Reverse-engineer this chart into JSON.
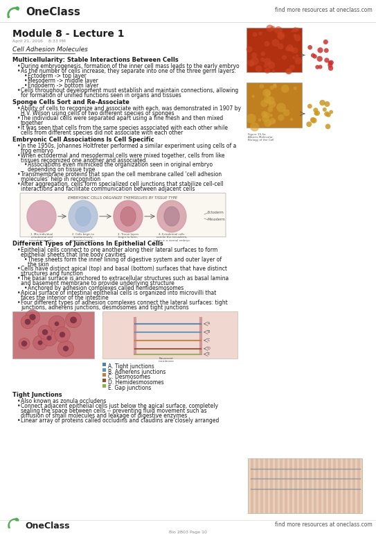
{
  "bg_color": "#ffffff",
  "title": "Module 8 - Lecture 1",
  "date_line": "April 21, 2016    8:33 PM",
  "section1": "Cell Adhesion Molecules",
  "bold1": "Multicellularity: Stable Interactions Between Cells",
  "bold2": "Sponge Cells Sort and Re-Associate",
  "bold3": "Embryonic Cell Associations Is Cell Specific",
  "diagram_label": "EMBRYONIC CELLS ORGANIZE THEMSELVES BY TISSUE TYPE",
  "bold4": "Different Types of Junctions In Epithelial Cells",
  "legend_items": [
    "A. Tight junctions",
    "B. Adherens junctions",
    "C. Desmosomes",
    "D. Hemidesmosomes",
    "E. Gap junctions"
  ],
  "bold5": "Tight Junctions",
  "footer_text": "Bio 2B03 Page 10",
  "top_right_text": "find more resources at oneclass.com",
  "bottom_right_text": "find more resources at oneclass.com",
  "text_color": "#1a1a1a",
  "body_font_size": 5.5,
  "title_font_size": 10,
  "section_font_size": 6.5,
  "bold_font_size": 6.0
}
